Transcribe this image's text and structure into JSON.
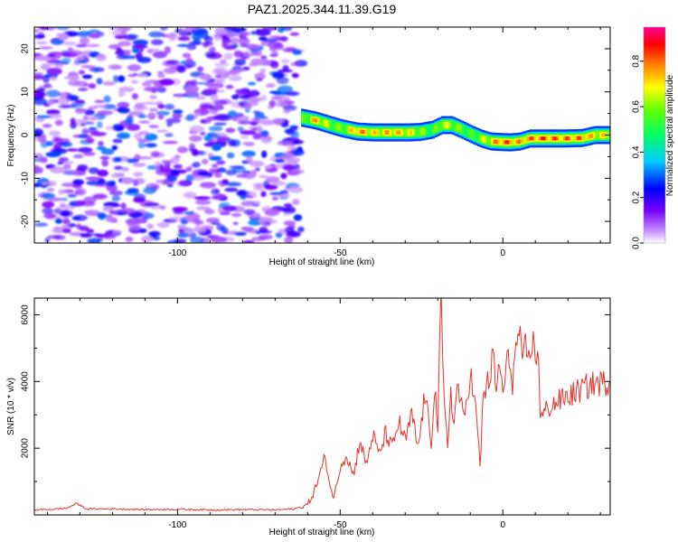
{
  "figure_title": "PAZ1.2025.344.11.39.G19",
  "chart_data": [
    {
      "type": "heatmap",
      "title": "PAZ1.2025.344.11.39.G19",
      "xlabel": "Height of straight line (km)",
      "ylabel": "Frequency (Hz)",
      "xlim": [
        -144,
        33
      ],
      "ylim": [
        -25,
        25
      ],
      "xticks": [
        -100,
        -50,
        0
      ],
      "yticks": [
        -20,
        -10,
        0,
        10,
        20
      ],
      "xtick_labels": [
        "-100",
        "-50",
        "0"
      ],
      "ytick_labels": [
        "-20",
        "-10",
        "0",
        "10",
        "20"
      ],
      "colorbar": {
        "label": "Normalized spectral amplitude",
        "range": [
          0,
          0.95
        ],
        "ticks": [
          0.0,
          0.2,
          0.4,
          0.6,
          0.8
        ],
        "tick_labels": [
          "0.0",
          "0.2",
          "0.4",
          "0.6",
          "0.8"
        ]
      },
      "noise_region": {
        "x_range": [
          -144,
          -62
        ],
        "amplitude_range": [
          0.05,
          0.25
        ]
      },
      "signal_ridge": {
        "x": [
          -62,
          -58,
          -54,
          -50,
          -45,
          -40,
          -35,
          -30,
          -26,
          -22,
          -19,
          -16,
          -13,
          -10,
          -7,
          -4,
          -1,
          2,
          5,
          8,
          12,
          18,
          24,
          28,
          33
        ],
        "frequency": [
          4,
          3.4,
          2.5,
          1.6,
          0.8,
          0.6,
          0.6,
          0.6,
          0.7,
          1.2,
          2.3,
          2.3,
          1.3,
          0.2,
          -0.8,
          -1.5,
          -1.6,
          -1.7,
          -1.5,
          -0.8,
          -0.8,
          -0.8,
          -0.7,
          0.0,
          0.0
        ],
        "peak_amplitude": [
          0.6,
          0.85,
          0.7,
          0.65,
          0.9,
          0.8,
          0.85,
          0.8,
          0.7,
          0.6,
          0.75,
          0.7,
          0.65,
          0.6,
          0.7,
          0.8,
          0.95,
          0.9,
          0.85,
          0.9,
          0.95,
          0.9,
          0.9,
          0.8,
          0.8
        ]
      }
    },
    {
      "type": "line",
      "xlabel": "Height of straight line (km)",
      "ylabel": "SNR (10 * v/v)",
      "xlim": [
        -144,
        33
      ],
      "ylim": [
        0,
        6500
      ],
      "xticks": [
        -100,
        -50,
        0
      ],
      "yticks": [
        2000,
        4000,
        6000
      ],
      "xtick_labels": [
        "-100",
        "-50",
        "0"
      ],
      "ytick_labels": [
        "2000",
        "4000",
        "6000"
      ],
      "line_color": "#e8322a",
      "series": [
        {
          "name": "SNR",
          "x": [
            -144,
            -138,
            -134,
            -131,
            -128,
            -120,
            -110,
            -100,
            -90,
            -80,
            -70,
            -64,
            -60,
            -58,
            -56,
            -55,
            -54,
            -53,
            -52,
            -51,
            -50,
            -48,
            -46,
            -45,
            -44,
            -42,
            -40,
            -38,
            -36,
            -34,
            -32,
            -30,
            -28,
            -27,
            -26,
            -24,
            -22,
            -21,
            -20,
            -19.5,
            -19,
            -18.5,
            -18,
            -17,
            -16,
            -15,
            -14,
            -12,
            -10,
            -8,
            -7,
            -6,
            -4,
            -3,
            -2,
            -1,
            0,
            1,
            2,
            3,
            4,
            5,
            6,
            7,
            8,
            9,
            10,
            11,
            11.5,
            12,
            13,
            15,
            17,
            19,
            21,
            23,
            25,
            27,
            29,
            31,
            33
          ],
          "y": [
            150,
            170,
            200,
            350,
            180,
            180,
            160,
            170,
            150,
            160,
            150,
            180,
            300,
            700,
            1300,
            1650,
            1450,
            800,
            550,
            900,
            1500,
            1800,
            1200,
            1650,
            2250,
            1500,
            2400,
            1800,
            2450,
            2000,
            2800,
            2200,
            3000,
            2450,
            2000,
            3600,
            2200,
            3900,
            2600,
            4600,
            6500,
            4300,
            3300,
            2000,
            3800,
            2600,
            4000,
            2800,
            4300,
            2900,
            1400,
            3600,
            4100,
            4800,
            3600,
            4700,
            3500,
            4400,
            4700,
            4000,
            4900,
            5600,
            4300,
            5100,
            4600,
            5300,
            4700,
            5000,
            3000,
            2900,
            3100,
            3300,
            3400,
            3500,
            3600,
            3700,
            3800,
            3900,
            3950,
            3950,
            4000
          ]
        }
      ]
    }
  ]
}
